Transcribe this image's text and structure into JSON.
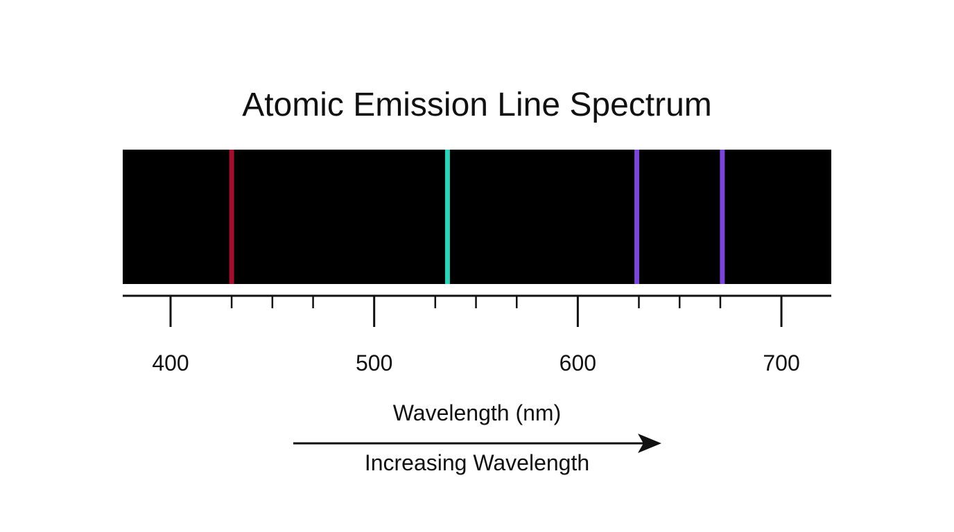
{
  "chart_data": {
    "type": "line-spectrum",
    "title": "Atomic Emission Line Spectrum",
    "xlabel": "Wavelength (nm)",
    "direction_label": "Increasing Wavelength",
    "xlim": [
      376.5,
      724.5
    ],
    "major_ticks": [
      400,
      500,
      600,
      700
    ],
    "minor_ticks": [
      430,
      450,
      470,
      530,
      550,
      570,
      630,
      650,
      670
    ],
    "lines": [
      {
        "wavelength": 430,
        "color": "#a0102e"
      },
      {
        "wavelength": 536,
        "color": "#2ed3b7"
      },
      {
        "wavelength": 629,
        "color": "#7b45d8"
      },
      {
        "wavelength": 671,
        "color": "#7b45d8"
      }
    ],
    "background_color": "#000000"
  }
}
